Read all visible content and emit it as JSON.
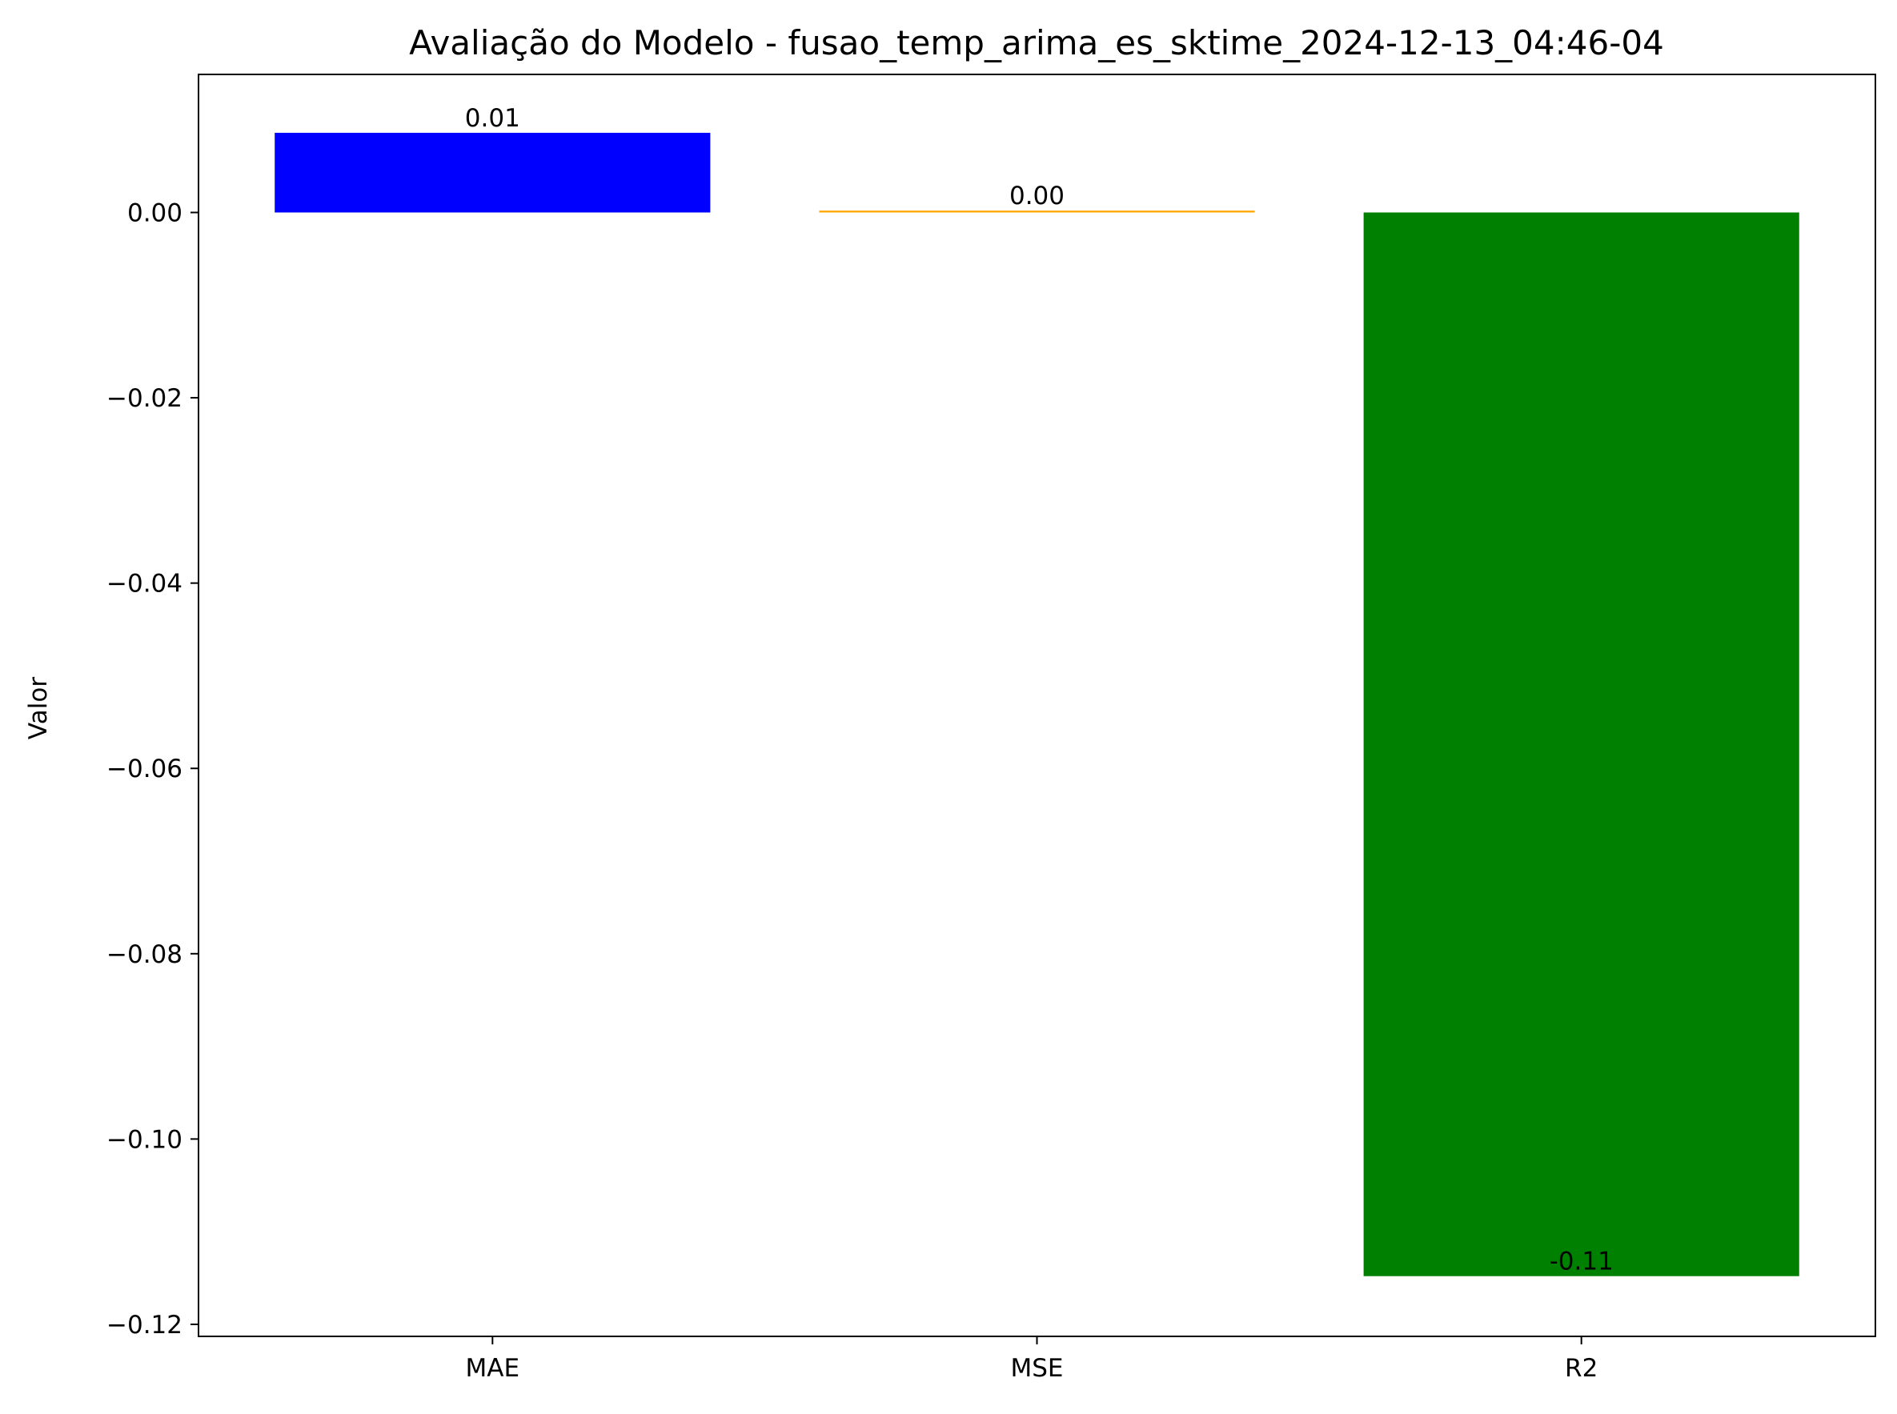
{
  "chart_data": {
    "type": "bar",
    "title": "Avaliação do Modelo - fusao_temp_arima_es_sktime_2024-12-13_04:46-04",
    "xlabel": "",
    "ylabel": "Valor",
    "categories": [
      "MAE",
      "MSE",
      "R2"
    ],
    "values": [
      0.0086,
      0.0002,
      -0.1148
    ],
    "value_labels": [
      "0.01",
      "0.00",
      "-0.11"
    ],
    "colors": [
      "#0000ff",
      "#ffa500",
      "#008000"
    ],
    "ylim": [
      -0.1213,
      0.0149
    ],
    "yticks": [
      0.0,
      -0.02,
      -0.04,
      -0.06,
      -0.08,
      -0.1,
      -0.12
    ],
    "ytick_labels": [
      "0.00",
      "−0.02",
      "−0.04",
      "−0.06",
      "−0.08",
      "−0.10",
      "−0.12"
    ],
    "grid": false,
    "legend": "none"
  }
}
